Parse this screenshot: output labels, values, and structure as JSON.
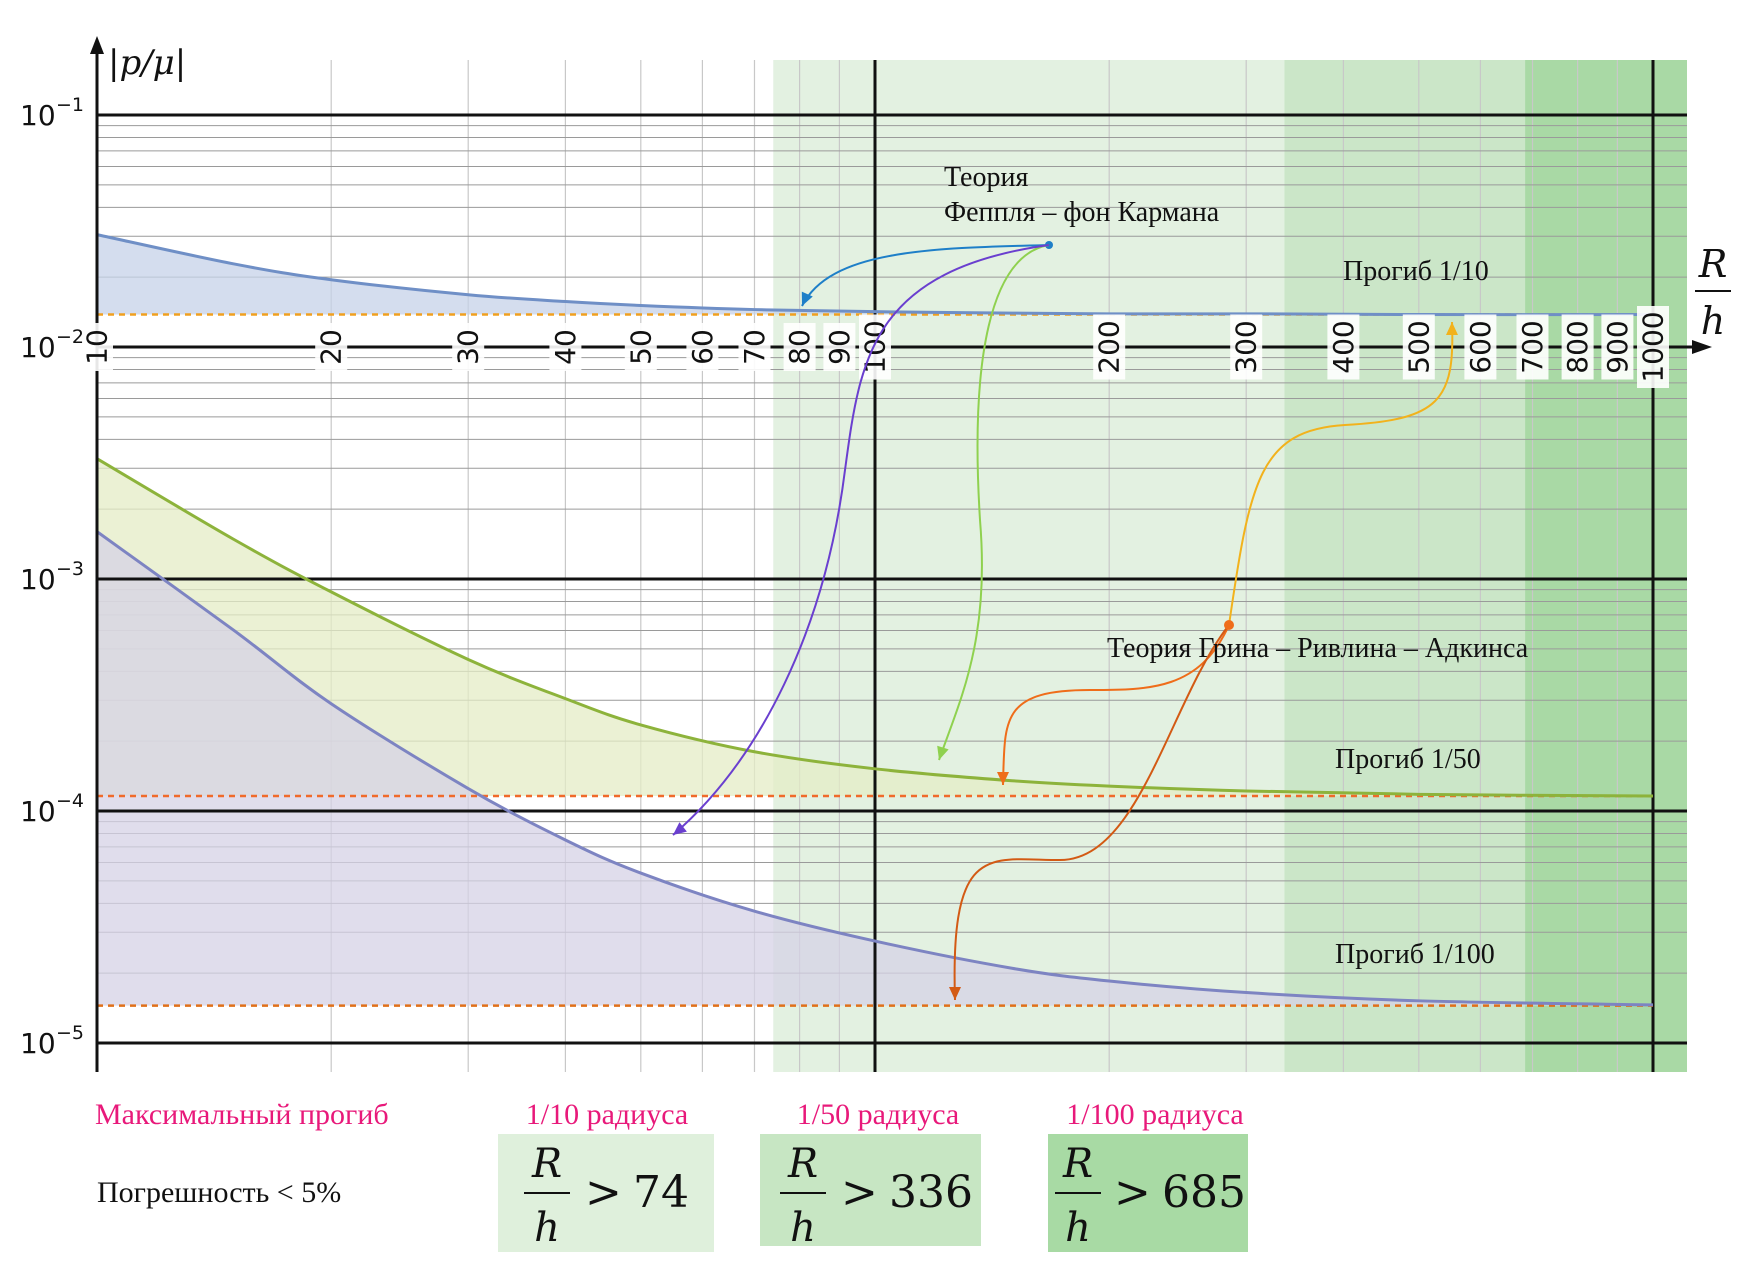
{
  "chart_data": {
    "type": "area",
    "x_scale": "log",
    "y_scale": "log",
    "xlim": [
      10,
      1150
    ],
    "ylim": [
      1e-05,
      0.1
    ],
    "x_ticks": [
      10,
      20,
      30,
      40,
      50,
      60,
      70,
      80,
      90,
      100,
      200,
      300,
      400,
      500,
      600,
      700,
      800,
      900,
      1000
    ],
    "x_tick_labels": [
      "10",
      "20",
      "30",
      "40",
      "50",
      "60",
      "70",
      "80",
      "90",
      "100",
      "200",
      "300",
      "400",
      "500",
      "600",
      "700",
      "800",
      "900",
      "1000"
    ],
    "y_ticks": [
      0.1,
      0.01,
      0.001,
      0.0001,
      1e-05
    ],
    "y_tick_labels": [
      {
        "base": "10",
        "exp": "−1"
      },
      {
        "base": "10",
        "exp": "−2"
      },
      {
        "base": "10",
        "exp": "−3"
      },
      {
        "base": "10",
        "exp": "−4"
      },
      {
        "base": "10",
        "exp": "−5"
      }
    ],
    "xlabel": {
      "num": "R",
      "den": "h"
    },
    "ylabel": "|p/μ|",
    "grid": true,
    "shaded_regions": [
      {
        "x_from": 74,
        "x_to": 1150,
        "color": "#e3f1e1"
      },
      {
        "x_from": 336,
        "x_to": 1150,
        "color": "#cbe6c8"
      },
      {
        "x_from": 685,
        "x_to": 1150,
        "color": "#a9d9a5"
      }
    ],
    "series": [
      {
        "deflection": "1/10",
        "color": "#6f8fc6",
        "fill": "#c5d2e8",
        "x": [
          10,
          15,
          20,
          30,
          40,
          50,
          70,
          100,
          150,
          200,
          300,
          500,
          1000
        ],
        "foppl_karman": [
          0.0305,
          0.0228,
          0.0195,
          0.0168,
          0.0157,
          0.0151,
          0.0145,
          0.0142,
          0.014,
          0.0139,
          0.0139,
          0.0138,
          0.0138
        ],
        "green_rivlin_adkins": 0.0138
      },
      {
        "deflection": "1/50",
        "color": "#8db33b",
        "fill": "#e4ecc6",
        "x": [
          10,
          15,
          20,
          30,
          40,
          50,
          70,
          100,
          150,
          200,
          300,
          500,
          1000
        ],
        "foppl_karman": [
          0.0033,
          0.00148,
          0.00088,
          0.00045,
          0.000305,
          0.000235,
          0.00018,
          0.000152,
          0.000135,
          0.000128,
          0.000122,
          0.000118,
          0.000116
        ],
        "green_rivlin_adkins": 0.000116
      },
      {
        "deflection": "1/100",
        "color": "#7d84c2",
        "fill": "#d6d2e6",
        "x": [
          10,
          15,
          20,
          30,
          40,
          50,
          70,
          100,
          150,
          200,
          300,
          500,
          1000
        ],
        "foppl_karman": [
          0.0016,
          0.0006,
          0.00029,
          0.000125,
          7.5e-05,
          5.4e-05,
          3.7e-05,
          2.75e-05,
          2.1e-05,
          1.85e-05,
          1.65e-05,
          1.52e-05,
          1.46e-05
        ],
        "green_rivlin_adkins": 1.45e-05
      }
    ],
    "annotations": {
      "fk_title_line1": "Теория",
      "fk_title_line2": "Феппля – фон Кармана",
      "gra_title": "Теория Грина – Ривлина – Адкинса",
      "defl_1_10": "Прогиб 1/10",
      "defl_1_50": "Прогиб 1/50",
      "defl_1_100": "Прогиб 1/100"
    },
    "arrow_colors": {
      "fk_1_10": "#1e7fc8",
      "fk_1_50": "#8fd14f",
      "fk_1_100": "#6a3fcf",
      "gra_1_10": "#f2b21c",
      "gra_1_50": "#ef6d1a",
      "gra_1_100": "#d35a14"
    }
  },
  "summary": {
    "row1_label": "Максимальный прогиб",
    "row2_label": "Погрешность < 5%",
    "boxes": [
      {
        "header": "1/10 радиуса",
        "num": "R",
        "den": "h",
        "rel": ">",
        "value": "74",
        "color": "#dff0dc"
      },
      {
        "header": "1/50 радиуса",
        "num": "R",
        "den": "h",
        "rel": ">",
        "value": "336",
        "color": "#c7e6c3"
      },
      {
        "header": "1/100 радиуса",
        "num": "R",
        "den": "h",
        "rel": ">",
        "value": "685",
        "color": "#a8daa4"
      }
    ]
  }
}
